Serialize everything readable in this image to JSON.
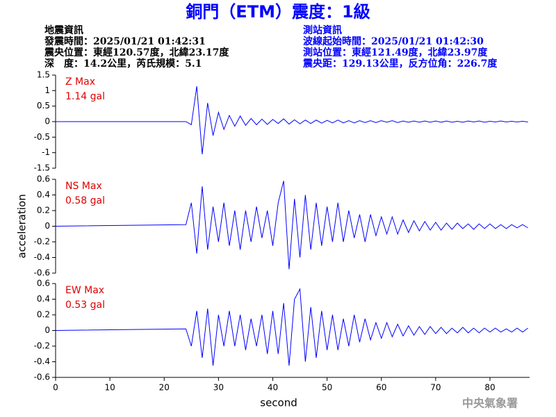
{
  "header": {
    "title": "銅門（ETM）震度：1級",
    "left": [
      "地震資訊",
      "發震時間：2025/01/21 01:42:31",
      "震央位置：東經120.57度，北緯23.17度",
      "深　度：14.2公里，芮氏規模：5.1"
    ],
    "right": [
      "測站資訊",
      "波線起始時間：2025/01/21 01:42:30",
      "測站位置：東經121.49度，北緯23.97度",
      "震央距：129.13公里，反方位角：226.7度"
    ],
    "footer": "中央氣象署"
  },
  "chart_data": [
    {
      "type": "line",
      "label": "Z Max",
      "max_label": "1.14 gal",
      "color": "#0000ff",
      "annotation_color": "#e00000",
      "xlim": [
        0,
        87.3
      ],
      "ylim": [
        -1.5,
        1.5
      ],
      "yticks": [
        1.5,
        1,
        0.5,
        0,
        -0.5,
        -1,
        -1.5
      ],
      "x": [
        0,
        24,
        25,
        26,
        27,
        28,
        29,
        30,
        31,
        32,
        33,
        34,
        35,
        36,
        37,
        38,
        39,
        40,
        41,
        42,
        43,
        44,
        45,
        46,
        47,
        48,
        49,
        50,
        51,
        52,
        53,
        54,
        55,
        56,
        57,
        58,
        59,
        60,
        61,
        62,
        63,
        64,
        65,
        66,
        67,
        68,
        69,
        70,
        71,
        72,
        73,
        74,
        75,
        76,
        77,
        78,
        79,
        80,
        81,
        82,
        83,
        84,
        85,
        86,
        87
      ],
      "values": [
        0,
        0,
        -0.1,
        1.14,
        -1.05,
        0.6,
        -0.45,
        0.3,
        -0.25,
        0.2,
        -0.15,
        0.18,
        -0.12,
        0.1,
        -0.1,
        0.08,
        -0.09,
        0.07,
        -0.06,
        0.09,
        -0.08,
        0.06,
        -0.07,
        0.05,
        -0.06,
        0.05,
        -0.05,
        0.04,
        -0.04,
        0.05,
        -0.04,
        0.03,
        -0.04,
        0.03,
        -0.03,
        0.03,
        -0.03,
        0.03,
        -0.02,
        0.03,
        -0.03,
        0.02,
        -0.02,
        0.02,
        -0.02,
        0.02,
        -0.02,
        0.02,
        -0.02,
        0.02,
        -0.02,
        0.01,
        -0.02,
        0.02,
        -0.01,
        0.02,
        -0.02,
        0.01,
        -0.01,
        0.02,
        -0.01,
        0.01,
        -0.01,
        0.01,
        -0.01
      ]
    },
    {
      "type": "line",
      "label": "NS Max",
      "max_label": "0.58 gal",
      "color": "#0000ff",
      "annotation_color": "#e00000",
      "ylabel": "acceleration",
      "xlim": [
        0,
        87.3
      ],
      "ylim": [
        -0.6,
        0.6
      ],
      "yticks": [
        0.6,
        0.4,
        0.2,
        0,
        -0.2,
        -0.4,
        -0.6
      ],
      "x": [
        0,
        24,
        25,
        26,
        27,
        28,
        29,
        30,
        31,
        32,
        33,
        34,
        35,
        36,
        37,
        38,
        39,
        40,
        41,
        42,
        43,
        44,
        45,
        46,
        47,
        48,
        49,
        50,
        51,
        52,
        53,
        54,
        55,
        56,
        57,
        58,
        59,
        60,
        61,
        62,
        63,
        64,
        65,
        66,
        67,
        68,
        69,
        70,
        71,
        72,
        73,
        74,
        75,
        76,
        77,
        78,
        79,
        80,
        81,
        82,
        83,
        84,
        85,
        86,
        87
      ],
      "values": [
        0,
        0.02,
        0.3,
        -0.35,
        0.51,
        -0.3,
        0.25,
        -0.2,
        0.3,
        -0.25,
        0.2,
        -0.3,
        0.2,
        -0.2,
        0.25,
        -0.15,
        0.2,
        -0.25,
        0.3,
        0.58,
        -0.55,
        0.35,
        -0.4,
        0.4,
        -0.3,
        0.3,
        -0.25,
        0.25,
        -0.2,
        0.3,
        -0.2,
        0.2,
        -0.15,
        0.15,
        -0.2,
        0.15,
        -0.12,
        0.12,
        -0.1,
        0.12,
        -0.1,
        0.08,
        -0.08,
        0.07,
        -0.06,
        0.06,
        -0.05,
        0.05,
        -0.05,
        0.04,
        -0.04,
        0.04,
        -0.03,
        0.03,
        -0.04,
        0.03,
        -0.03,
        0.03,
        -0.03,
        0.02,
        -0.03,
        0.02,
        -0.02,
        0.02,
        -0.02
      ]
    },
    {
      "type": "line",
      "label": "EW Max",
      "max_label": "0.53 gal",
      "color": "#0000ff",
      "annotation_color": "#e00000",
      "xlabel": "second",
      "xlim": [
        0,
        87.3
      ],
      "ylim": [
        -0.6,
        0.6
      ],
      "yticks": [
        0.6,
        0.4,
        0.2,
        0,
        -0.2,
        -0.4,
        -0.6
      ],
      "xticks": [
        0,
        10,
        20,
        30,
        40,
        50,
        60,
        70,
        80
      ],
      "x": [
        0,
        24,
        25,
        26,
        27,
        28,
        29,
        30,
        31,
        32,
        33,
        34,
        35,
        36,
        37,
        38,
        39,
        40,
        41,
        42,
        43,
        44,
        45,
        46,
        47,
        48,
        49,
        50,
        51,
        52,
        53,
        54,
        55,
        56,
        57,
        58,
        59,
        60,
        61,
        62,
        63,
        64,
        65,
        66,
        67,
        68,
        69,
        70,
        71,
        72,
        73,
        74,
        75,
        76,
        77,
        78,
        79,
        80,
        81,
        82,
        83,
        84,
        85,
        86,
        87
      ],
      "values": [
        0,
        0.02,
        -0.2,
        0.25,
        -0.35,
        0.28,
        -0.45,
        0.2,
        -0.2,
        0.25,
        -0.2,
        0.2,
        -0.25,
        0.15,
        -0.2,
        0.2,
        -0.3,
        0.25,
        -0.3,
        0.35,
        -0.45,
        0.4,
        0.53,
        -0.4,
        0.3,
        -0.35,
        0.25,
        -0.25,
        0.2,
        -0.25,
        0.15,
        -0.2,
        0.2,
        -0.15,
        0.15,
        -0.12,
        0.1,
        -0.1,
        0.1,
        -0.08,
        0.08,
        -0.07,
        0.06,
        -0.06,
        0.05,
        -0.05,
        0.05,
        -0.04,
        0.04,
        -0.04,
        0.03,
        -0.03,
        0.04,
        -0.03,
        0.03,
        -0.03,
        0.03,
        -0.02,
        0.03,
        -0.02,
        0.02,
        -0.02,
        0.03,
        -0.02,
        0.03
      ]
    }
  ]
}
